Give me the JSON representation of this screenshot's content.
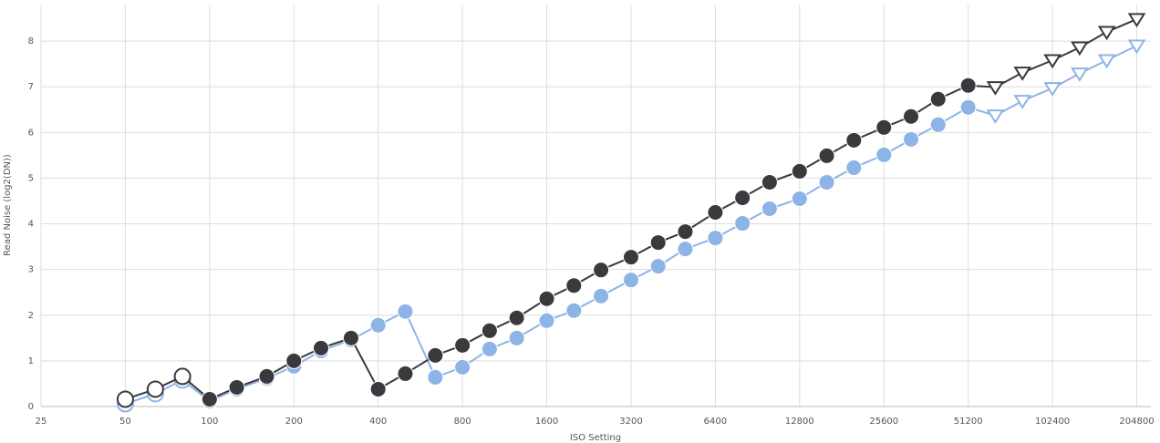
{
  "chart_data": {
    "type": "line",
    "x_label": "ISO Setting",
    "y_label": "Read Noise (log2(DN))",
    "x": [
      50,
      64,
      80,
      100,
      125,
      160,
      200,
      250,
      320,
      400,
      500,
      640,
      800,
      1000,
      1250,
      1600,
      2000,
      2500,
      3200,
      4000,
      5000,
      6400,
      8000,
      10000,
      12800,
      16000,
      20000,
      25600,
      32000,
      40000,
      51200,
      64000,
      80000,
      102400,
      128000,
      160000,
      204800
    ],
    "markers": [
      "hollow-circle",
      "hollow-circle",
      "hollow-circle",
      "circle",
      "circle",
      "circle",
      "circle",
      "circle",
      "circle",
      "circle",
      "circle",
      "circle",
      "circle",
      "circle",
      "circle",
      "circle",
      "circle",
      "circle",
      "circle",
      "circle",
      "circle",
      "circle",
      "circle",
      "circle",
      "circle",
      "circle",
      "circle",
      "circle",
      "circle",
      "circle",
      "circle",
      "triangle",
      "triangle",
      "triangle",
      "triangle",
      "triangle",
      "triangle"
    ],
    "series": [
      {
        "color": "#8db4e6",
        "values": [
          0.06,
          0.28,
          0.58,
          0.12,
          0.38,
          0.62,
          0.88,
          1.22,
          1.46,
          1.78,
          2.08,
          0.64,
          0.86,
          1.26,
          1.5,
          1.88,
          2.1,
          2.42,
          2.77,
          3.07,
          3.45,
          3.69,
          4.01,
          4.33,
          4.55,
          4.91,
          5.23,
          5.51,
          5.85,
          6.17,
          6.55,
          6.37,
          6.69,
          6.97,
          7.29,
          7.58,
          7.9
        ]
      },
      {
        "color": "#3a3a3e",
        "values": [
          0.16,
          0.38,
          0.66,
          0.16,
          0.42,
          0.66,
          1.0,
          1.28,
          1.5,
          0.38,
          0.72,
          1.12,
          1.34,
          1.66,
          1.94,
          2.36,
          2.65,
          2.99,
          3.27,
          3.59,
          3.83,
          4.25,
          4.57,
          4.91,
          5.15,
          5.49,
          5.83,
          6.11,
          6.35,
          6.73,
          7.03,
          6.99,
          7.31,
          7.58,
          7.86,
          8.2,
          8.48
        ]
      }
    ],
    "xscale": "log",
    "xlim": [
      25,
      230000
    ],
    "xticks": [
      25,
      50,
      100,
      200,
      400,
      800,
      1600,
      3200,
      6400,
      12800,
      25600,
      51200,
      102400,
      204800
    ],
    "ylim": [
      0,
      8.8
    ],
    "yticks": [
      0,
      1,
      2,
      3,
      4,
      5,
      6,
      7,
      8
    ],
    "grid": true
  }
}
